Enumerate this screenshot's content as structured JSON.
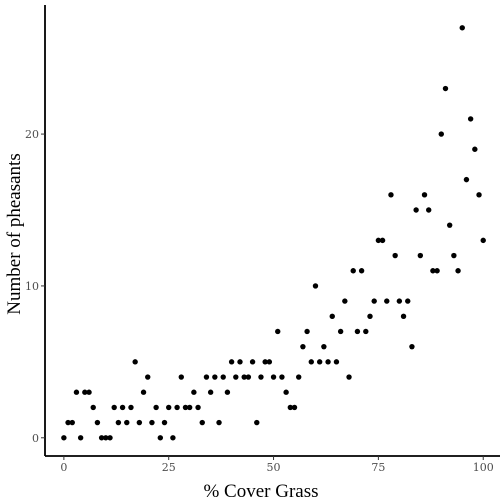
{
  "chart_data": {
    "type": "scatter",
    "title": "",
    "xlabel": "% Cover Grass",
    "ylabel": "Number of pheasants",
    "xlim": [
      -4.5,
      104
    ],
    "ylim": [
      -1.2,
      28.5
    ],
    "xticks": [
      0,
      25,
      50,
      75,
      100
    ],
    "yticks": [
      0,
      10,
      20
    ],
    "grid": false,
    "legend": "none",
    "point_color": "#000000",
    "series": [
      {
        "x": [
          0,
          1,
          2,
          3,
          4,
          5,
          6,
          7,
          8,
          9,
          10,
          11,
          12,
          13,
          14,
          15,
          16,
          17,
          18,
          19,
          20,
          21,
          22,
          23,
          24,
          25,
          26,
          27,
          28,
          29,
          30,
          31,
          32,
          33,
          34,
          35,
          36,
          37,
          38,
          39,
          40,
          41,
          42,
          43,
          44,
          45,
          46,
          47,
          48,
          49,
          50,
          51,
          52,
          53,
          54,
          55,
          56,
          57,
          58,
          59,
          60,
          61,
          62,
          63,
          64,
          65,
          66,
          67,
          68,
          69,
          70,
          71,
          72,
          73,
          74,
          75,
          76,
          77,
          78,
          79,
          80,
          81,
          82,
          83,
          84,
          85,
          86,
          87,
          88,
          89,
          90,
          91,
          92,
          93,
          94,
          95,
          96,
          97,
          98,
          99,
          100
        ],
        "y": [
          0,
          1,
          1,
          3,
          0,
          3,
          3,
          2,
          1,
          0,
          0,
          0,
          2,
          1,
          2,
          1,
          2,
          5,
          1,
          3,
          4,
          1,
          2,
          0,
          1,
          2,
          0,
          2,
          4,
          2,
          2,
          3,
          2,
          1,
          4,
          3,
          4,
          1,
          4,
          3,
          5,
          4,
          5,
          4,
          4,
          5,
          1,
          4,
          5,
          5,
          4,
          7,
          4,
          3,
          2,
          2,
          4,
          6,
          7,
          5,
          10,
          5,
          6,
          5,
          8,
          5,
          7,
          9,
          4,
          11,
          7,
          11,
          7,
          8,
          9,
          13,
          13,
          9,
          16,
          12,
          9,
          8,
          9,
          6,
          15,
          12,
          16,
          15,
          11,
          11,
          20,
          23,
          14,
          12,
          11,
          27,
          17,
          21,
          19,
          16,
          13
        ]
      }
    ]
  }
}
